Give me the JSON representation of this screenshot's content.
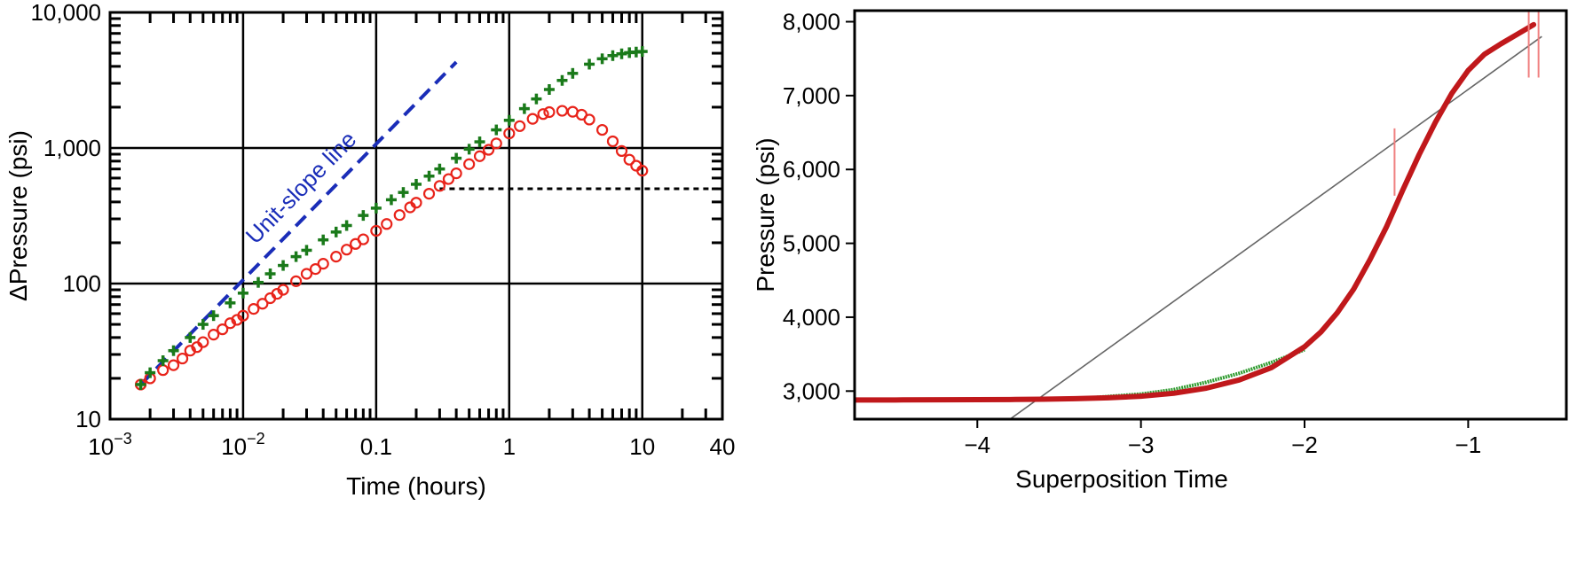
{
  "chart_data": [
    {
      "type": "scatter",
      "x_scale": "log",
      "y_scale": "log",
      "xlabel": "Time (hours)",
      "ylabel": "ΔPressure (psi)",
      "xlim": [
        0.001,
        40
      ],
      "ylim": [
        10,
        10000
      ],
      "x_ticks": [
        {
          "value": 0.001,
          "base": "10",
          "exp": "−3"
        },
        {
          "value": 0.01,
          "base": "10",
          "exp": "−2"
        },
        {
          "value": 0.1,
          "label": "0.1"
        },
        {
          "value": 1,
          "label": "1"
        },
        {
          "value": 10,
          "label": "10"
        },
        {
          "value": 40,
          "label": "40"
        }
      ],
      "y_ticks": [
        {
          "value": 10,
          "label": "10"
        },
        {
          "value": 100,
          "label": "100"
        },
        {
          "value": 1000,
          "label": "1,000"
        },
        {
          "value": 10000,
          "label": "10,000"
        }
      ],
      "grid_major": true,
      "annotation": {
        "text": "Unit-slope line"
      },
      "series": [
        {
          "marker": "plus",
          "color": "#1a7a1a",
          "x": [
            0.0017,
            0.002,
            0.0025,
            0.003,
            0.004,
            0.005,
            0.006,
            0.008,
            0.01,
            0.013,
            0.016,
            0.02,
            0.025,
            0.03,
            0.04,
            0.05,
            0.06,
            0.08,
            0.1,
            0.13,
            0.16,
            0.2,
            0.25,
            0.3,
            0.4,
            0.5,
            0.6,
            0.8,
            1,
            1.3,
            1.6,
            2,
            2.5,
            3,
            4,
            5,
            6,
            7,
            8,
            9,
            10
          ],
          "y": [
            18,
            22,
            27,
            32,
            40,
            50,
            58,
            72,
            85,
            102,
            118,
            136,
            158,
            176,
            210,
            240,
            268,
            318,
            360,
            415,
            470,
            540,
            620,
            700,
            840,
            980,
            1110,
            1360,
            1600,
            1950,
            2300,
            2700,
            3150,
            3550,
            4150,
            4550,
            4800,
            4950,
            5050,
            5100,
            5150
          ]
        },
        {
          "marker": "circle",
          "color": "#e8231a",
          "x": [
            0.0017,
            0.002,
            0.0025,
            0.003,
            0.0035,
            0.004,
            0.0045,
            0.005,
            0.006,
            0.007,
            0.008,
            0.009,
            0.01,
            0.012,
            0.014,
            0.016,
            0.018,
            0.02,
            0.025,
            0.03,
            0.035,
            0.04,
            0.05,
            0.06,
            0.07,
            0.08,
            0.1,
            0.12,
            0.15,
            0.18,
            0.2,
            0.25,
            0.3,
            0.35,
            0.4,
            0.5,
            0.6,
            0.7,
            0.8,
            1,
            1.2,
            1.5,
            1.8,
            2,
            2.5,
            3,
            3.5,
            4,
            5,
            6,
            7,
            8,
            9,
            10
          ],
          "y": [
            18,
            20,
            23,
            25,
            28,
            32,
            34,
            37,
            42,
            46,
            51,
            54,
            58,
            65,
            71,
            78,
            84,
            90,
            104,
            118,
            128,
            140,
            158,
            178,
            196,
            212,
            245,
            275,
            320,
            365,
            395,
            460,
            525,
            590,
            650,
            760,
            870,
            970,
            1080,
            1280,
            1450,
            1640,
            1780,
            1840,
            1880,
            1850,
            1760,
            1620,
            1360,
            1120,
            950,
            820,
            740,
            680
          ]
        }
      ],
      "unit_slope_line": {
        "x": [
          0.0017,
          0.4
        ],
        "y": [
          18,
          4300
        ],
        "color": "#1a2db8"
      },
      "horizontal_reference": {
        "y": 500,
        "x": [
          0.3,
          10
        ],
        "style": "dotted"
      }
    },
    {
      "type": "line",
      "xlabel": "Superposition Time",
      "ylabel": "Pressure (psi)",
      "xlim": [
        -4.75,
        -0.4
      ],
      "ylim": [
        2620,
        8150
      ],
      "x_ticks": [
        {
          "value": -4,
          "label": "−4"
        },
        {
          "value": -3,
          "label": "−3"
        },
        {
          "value": -2,
          "label": "−2"
        },
        {
          "value": -1,
          "label": "−1"
        }
      ],
      "y_ticks": [
        {
          "value": 3000,
          "label": "3,000"
        },
        {
          "value": 4000,
          "label": "4,000"
        },
        {
          "value": 5000,
          "label": "5,000"
        },
        {
          "value": 6000,
          "label": "6,000"
        },
        {
          "value": 7000,
          "label": "7,000"
        },
        {
          "value": 8000,
          "label": "8,000"
        }
      ],
      "grid_major": false,
      "series": [
        {
          "color": "#2f9b2f",
          "x": [
            -4.75,
            -4.5,
            -4.2,
            -3.9,
            -3.6,
            -3.3,
            -3.0,
            -2.8,
            -2.6,
            -2.4,
            -2.2,
            -2.0
          ],
          "y": [
            2880,
            2882,
            2884,
            2888,
            2895,
            2910,
            2960,
            3020,
            3120,
            3240,
            3390,
            3560
          ]
        },
        {
          "color": "#c0181b",
          "x": [
            -4.75,
            -4.5,
            -4.2,
            -4.0,
            -3.8,
            -3.6,
            -3.4,
            -3.2,
            -3.0,
            -2.8,
            -2.6,
            -2.4,
            -2.2,
            -2.0,
            -1.9,
            -1.8,
            -1.7,
            -1.6,
            -1.5,
            -1.4,
            -1.3,
            -1.2,
            -1.1,
            -1.0,
            -0.9,
            -0.8,
            -0.7,
            -0.6
          ],
          "y": [
            2880,
            2880,
            2882,
            2884,
            2886,
            2890,
            2898,
            2910,
            2930,
            2970,
            3040,
            3150,
            3320,
            3600,
            3800,
            4060,
            4380,
            4780,
            5220,
            5720,
            6200,
            6640,
            7030,
            7340,
            7560,
            7700,
            7830,
            7960
          ]
        }
      ],
      "reference_line": {
        "x": [
          -3.8,
          -0.55
        ],
        "y": [
          2620,
          7800
        ],
        "color": "#666666"
      },
      "markers": [
        {
          "x": -1.45,
          "y": 6100,
          "color": "#f08080"
        },
        {
          "x": -0.63,
          "y": 7700,
          "color": "#f08080"
        },
        {
          "x": -0.57,
          "y": 7700,
          "color": "#f08080"
        }
      ]
    }
  ]
}
